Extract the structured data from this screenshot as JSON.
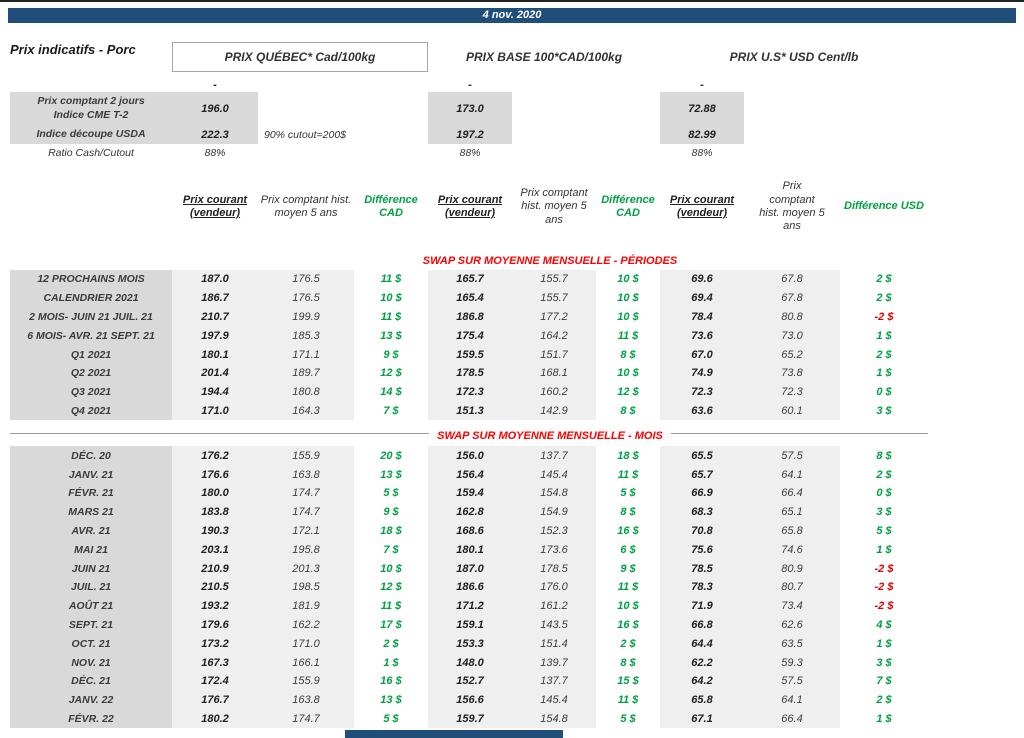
{
  "top": {
    "date": "4 nov. 2020"
  },
  "title": "Prix indicatifs - Porc",
  "groups": [
    {
      "name": "PRIX QUÉBEC* Cad/100kg",
      "dash": "-"
    },
    {
      "name": "PRIX BASE 100*CAD/100kg",
      "dash": "-"
    },
    {
      "name": "PRIX U.S* USD Cent/lb",
      "dash": "-"
    }
  ],
  "spot": {
    "row1_label": "Prix comptant 2 jours\nIndice CME T-2",
    "row1_values": [
      "196.0",
      "173.0",
      "72.88"
    ],
    "row2_label": "Indice découpe USDA",
    "row2_note": "90% cutout=200$",
    "row2_values": [
      "222.3",
      "197.2",
      "82.99"
    ],
    "row3_label": "Ratio Cash/Cutout",
    "row3_values": [
      "88%",
      "88%",
      "88%"
    ]
  },
  "column_headers": {
    "current": "Prix courant (vendeur)",
    "hist": "Prix comptant hist. moyen 5 ans",
    "diff_cad": "Différence CAD",
    "diff_usd": "Différence USD"
  },
  "sections": [
    {
      "title": "SWAP SUR MOYENNE MENSUELLE - PÉRIODES",
      "rows": [
        {
          "label": "12 PROCHAINS MOIS",
          "values": [
            "187.0",
            "176.5",
            "11 $",
            "165.7",
            "155.7",
            "10 $",
            "69.6",
            "67.8",
            "2 $"
          ]
        },
        {
          "label": "CALENDRIER 2021",
          "values": [
            "186.7",
            "176.5",
            "10 $",
            "165.4",
            "155.7",
            "10 $",
            "69.4",
            "67.8",
            "2 $"
          ]
        },
        {
          "label": "2 MOIS- JUIN 21 JUIL. 21",
          "values": [
            "210.7",
            "199.9",
            "11 $",
            "186.8",
            "177.2",
            "10 $",
            "78.4",
            "80.8",
            "-2 $"
          ]
        },
        {
          "label": "6 MOIS- AVR. 21 SEPT. 21",
          "values": [
            "197.9",
            "185.3",
            "13 $",
            "175.4",
            "164.2",
            "11 $",
            "73.6",
            "73.0",
            "1 $"
          ]
        },
        {
          "label": "Q1 2021",
          "values": [
            "180.1",
            "171.1",
            "9 $",
            "159.5",
            "151.7",
            "8 $",
            "67.0",
            "65.2",
            "2 $"
          ]
        },
        {
          "label": "Q2 2021",
          "values": [
            "201.4",
            "189.7",
            "12 $",
            "178.5",
            "168.1",
            "10 $",
            "74.9",
            "73.8",
            "1 $"
          ]
        },
        {
          "label": "Q3 2021",
          "values": [
            "194.4",
            "180.8",
            "14 $",
            "172.3",
            "160.2",
            "12 $",
            "72.3",
            "72.3",
            "0 $"
          ]
        },
        {
          "label": "Q4 2021",
          "values": [
            "171.0",
            "164.3",
            "7 $",
            "151.3",
            "142.9",
            "8 $",
            "63.6",
            "60.1",
            "3 $"
          ]
        }
      ]
    },
    {
      "title": "SWAP SUR MOYENNE MENSUELLE - MOIS",
      "rows": [
        {
          "label": "DÉC. 20",
          "values": [
            "176.2",
            "155.9",
            "20 $",
            "156.0",
            "137.7",
            "18 $",
            "65.5",
            "57.5",
            "8 $"
          ]
        },
        {
          "label": "JANV. 21",
          "values": [
            "176.6",
            "163.8",
            "13 $",
            "156.4",
            "145.4",
            "11 $",
            "65.7",
            "64.1",
            "2 $"
          ]
        },
        {
          "label": "FÉVR. 21",
          "values": [
            "180.0",
            "174.7",
            "5 $",
            "159.4",
            "154.8",
            "5 $",
            "66.9",
            "66.4",
            "0 $"
          ]
        },
        {
          "label": "MARS 21",
          "values": [
            "183.8",
            "174.7",
            "9 $",
            "162.8",
            "154.9",
            "8 $",
            "68.3",
            "65.1",
            "3 $"
          ]
        },
        {
          "label": "AVR. 21",
          "values": [
            "190.3",
            "172.1",
            "18 $",
            "168.6",
            "152.3",
            "16 $",
            "70.8",
            "65.8",
            "5 $"
          ]
        },
        {
          "label": "MAI 21",
          "values": [
            "203.1",
            "195.8",
            "7 $",
            "180.1",
            "173.6",
            "6 $",
            "75.6",
            "74.6",
            "1 $"
          ]
        },
        {
          "label": "JUIN 21",
          "values": [
            "210.9",
            "201.3",
            "10 $",
            "187.0",
            "178.5",
            "9 $",
            "78.5",
            "80.9",
            "-2 $"
          ]
        },
        {
          "label": "JUIL. 21",
          "values": [
            "210.5",
            "198.5",
            "12 $",
            "186.6",
            "176.0",
            "11 $",
            "78.3",
            "80.7",
            "-2 $"
          ]
        },
        {
          "label": "AOÛT 21",
          "values": [
            "193.2",
            "181.9",
            "11 $",
            "171.2",
            "161.2",
            "10 $",
            "71.9",
            "73.4",
            "-2 $"
          ]
        },
        {
          "label": "SEPT. 21",
          "values": [
            "179.6",
            "162.2",
            "17 $",
            "159.1",
            "143.5",
            "16 $",
            "66.8",
            "62.6",
            "4 $"
          ]
        },
        {
          "label": "OCT. 21",
          "values": [
            "173.2",
            "171.0",
            "2 $",
            "153.3",
            "151.4",
            "2 $",
            "64.4",
            "63.5",
            "1 $"
          ]
        },
        {
          "label": "NOV. 21",
          "values": [
            "167.3",
            "166.1",
            "1 $",
            "148.0",
            "139.7",
            "8 $",
            "62.2",
            "59.3",
            "3 $"
          ]
        },
        {
          "label": "DÉC. 21",
          "values": [
            "172.4",
            "155.9",
            "16 $",
            "152.7",
            "137.7",
            "15 $",
            "64.2",
            "57.5",
            "7 $"
          ]
        },
        {
          "label": "JANV. 22",
          "values": [
            "176.7",
            "163.8",
            "13 $",
            "156.6",
            "145.4",
            "11 $",
            "65.8",
            "64.1",
            "2 $"
          ]
        },
        {
          "label": "FÉVR. 22",
          "values": [
            "180.2",
            "174.7",
            "5 $",
            "159.7",
            "154.8",
            "5 $",
            "67.1",
            "66.4",
            "1 $"
          ]
        }
      ]
    }
  ],
  "colors": {
    "banner_blue": "#1F4E79",
    "positive_green": "#00A143",
    "negative_red": "#E00000",
    "section_red": "#FF0000",
    "label_gray": "#D9D9D9",
    "band_gray": "#EFEFEF"
  }
}
